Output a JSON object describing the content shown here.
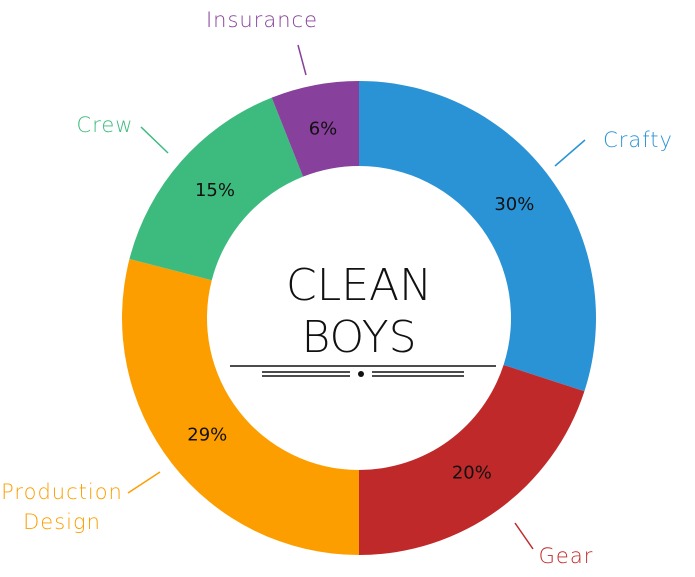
{
  "chart_data": {
    "type": "pie",
    "donut": true,
    "categories": [
      "Crafty",
      "Gear",
      "Production Design",
      "Crew",
      "Insurance"
    ],
    "values": [
      30,
      20,
      29,
      15,
      6
    ],
    "value_labels": [
      "30%",
      "20%",
      "29%",
      "15%",
      "6%"
    ],
    "colors": [
      "#2a93d5",
      "#c0292a",
      "#fd9e00",
      "#3dbb7f",
      "#87409b"
    ],
    "center_text": [
      "CLEAN",
      "BOYS"
    ]
  }
}
